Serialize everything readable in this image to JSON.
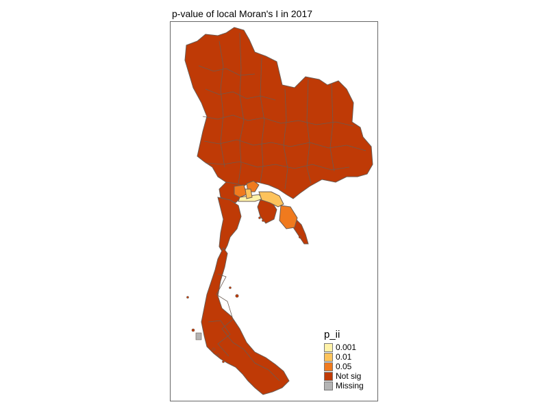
{
  "title": "p-value of local Moran's I in 2017",
  "legend": {
    "title": "p_ii",
    "items": [
      {
        "label": "0.001",
        "color": "#FFF2A8"
      },
      {
        "label": "0.01",
        "color": "#FDC35B"
      },
      {
        "label": "0.05",
        "color": "#F07A1E"
      },
      {
        "label": "Not sig",
        "color": "#BF3A06"
      },
      {
        "label": "Missing",
        "color": "#B4B4B4"
      }
    ]
  },
  "map": {
    "region": "Thailand provinces",
    "classes": {
      "not_sig": "#BF3A06",
      "p005": "#F07A1E",
      "p001": "#FDC35B",
      "p0001": "#FFF2A8",
      "missing": "#B4B4B4"
    },
    "border_color": "#6b5b52"
  }
}
